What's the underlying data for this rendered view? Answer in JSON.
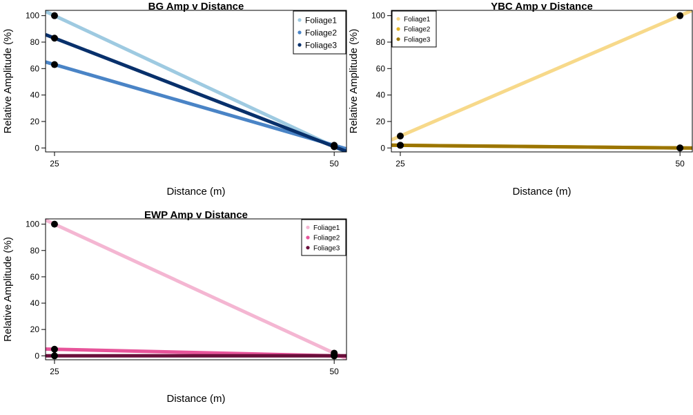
{
  "chart_data": [
    {
      "type": "line",
      "title": "BG Amp v Distance",
      "xlabel": "Distance (m)",
      "ylabel": "Relative Amplitude (%)",
      "x_ticks": [
        25,
        50
      ],
      "y_ticks": [
        0,
        20,
        40,
        60,
        80,
        100
      ],
      "xlim": [
        24.2,
        51.1
      ],
      "ylim": [
        -3,
        104
      ],
      "legend_position": "top-right",
      "series": [
        {
          "name": "Foliage1",
          "color": "#9ecae1",
          "x": [
            25,
            50
          ],
          "y": [
            100,
            1
          ],
          "points": [
            [
              25,
              100
            ],
            [
              50,
              1
            ]
          ]
        },
        {
          "name": "Foliage2",
          "color": "#4a84c6",
          "x": [
            25,
            50
          ],
          "y": [
            63,
            2
          ],
          "points": [
            [
              25,
              63
            ],
            [
              50,
              2
            ]
          ]
        },
        {
          "name": "Foliage3",
          "color": "#08306b",
          "x": [
            25,
            50
          ],
          "y": [
            83,
            1
          ],
          "points": [
            [
              25,
              83
            ],
            [
              50,
              1
            ]
          ]
        }
      ]
    },
    {
      "type": "line",
      "title": "YBC Amp v Distance",
      "xlabel": "Distance (m)",
      "ylabel": "Relative Amplitude (%)",
      "x_ticks": [
        25,
        50
      ],
      "y_ticks": [
        0,
        20,
        40,
        60,
        80,
        100
      ],
      "xlim": [
        24.2,
        51.1
      ],
      "ylim": [
        -3,
        104
      ],
      "legend_position": "top-left",
      "series": [
        {
          "name": "Foliage1",
          "color": "#f7d98a",
          "x": [
            25,
            50
          ],
          "y": [
            9,
            100
          ],
          "points": [
            [
              25,
              9
            ],
            [
              50,
              100
            ]
          ]
        },
        {
          "name": "Foliage2",
          "color": "#e3b21f",
          "x": [
            25,
            50
          ],
          "y": [
            2,
            0
          ],
          "points": [
            [
              25,
              2
            ],
            [
              50,
              0
            ]
          ]
        },
        {
          "name": "Foliage3",
          "color": "#9b7500",
          "x": [
            25,
            50
          ],
          "y": [
            2,
            0
          ],
          "points": [
            [
              25,
              2
            ],
            [
              50,
              0
            ]
          ]
        }
      ]
    },
    {
      "type": "line",
      "title": "EWP Amp v Distance",
      "xlabel": "Distance (m)",
      "ylabel": "Relative Amplitude (%)",
      "x_ticks": [
        25,
        50
      ],
      "y_ticks": [
        0,
        20,
        40,
        60,
        80,
        100
      ],
      "xlim": [
        24.2,
        51.1
      ],
      "ylim": [
        -3,
        104
      ],
      "legend_position": "top-right",
      "series": [
        {
          "name": "Foliage1",
          "color": "#f4b6d2",
          "x": [
            25,
            50
          ],
          "y": [
            100,
            2
          ],
          "points": [
            [
              25,
              100
            ],
            [
              50,
              2
            ]
          ]
        },
        {
          "name": "Foliage2",
          "color": "#e7549a",
          "x": [
            25,
            50
          ],
          "y": [
            5,
            0
          ],
          "points": [
            [
              25,
              5
            ],
            [
              50,
              0
            ]
          ]
        },
        {
          "name": "Foliage3",
          "color": "#6a0f3b",
          "x": [
            25,
            50
          ],
          "y": [
            0,
            0
          ],
          "points": [
            [
              25,
              0
            ],
            [
              50,
              0
            ]
          ]
        }
      ]
    }
  ]
}
